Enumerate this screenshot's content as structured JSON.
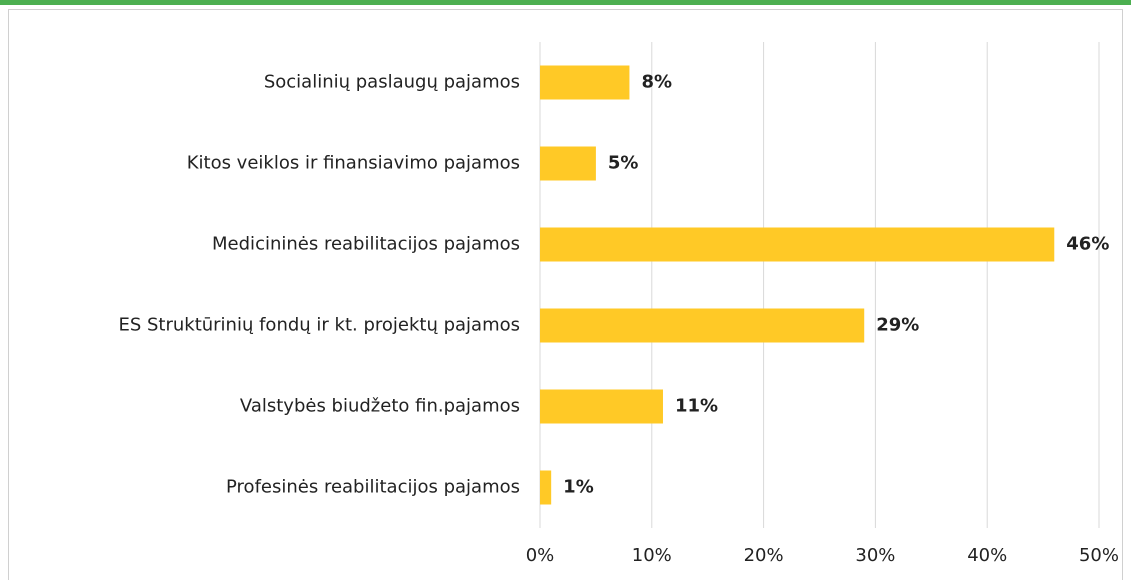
{
  "chart_data": {
    "type": "barh",
    "categories": [
      "Socialinių paslaugų pajamos",
      "Kitos veiklos ir finansiavimo pajamos",
      "Medicininės reabilitacijos pajamos",
      "ES Struktūrinių fondų ir kt. projektų pajamos",
      "Valstybės biudžeto fin.pajamos",
      "Profesinės reabilitacijos pajamos"
    ],
    "values": [
      8,
      5,
      46,
      29,
      11,
      1
    ],
    "value_labels": [
      "8%",
      "5%",
      "46%",
      "29%",
      "11%",
      "1%"
    ],
    "color": "#ffc926",
    "xlim": [
      0,
      50
    ],
    "xticks": [
      {
        "value": 0,
        "label": "0%"
      },
      {
        "value": 10,
        "label": "10%"
      },
      {
        "value": 20,
        "label": "20%"
      },
      {
        "value": 30,
        "label": "30%"
      },
      {
        "value": 40,
        "label": "40%"
      },
      {
        "value": 50,
        "label": "50%"
      }
    ],
    "grid": true
  }
}
